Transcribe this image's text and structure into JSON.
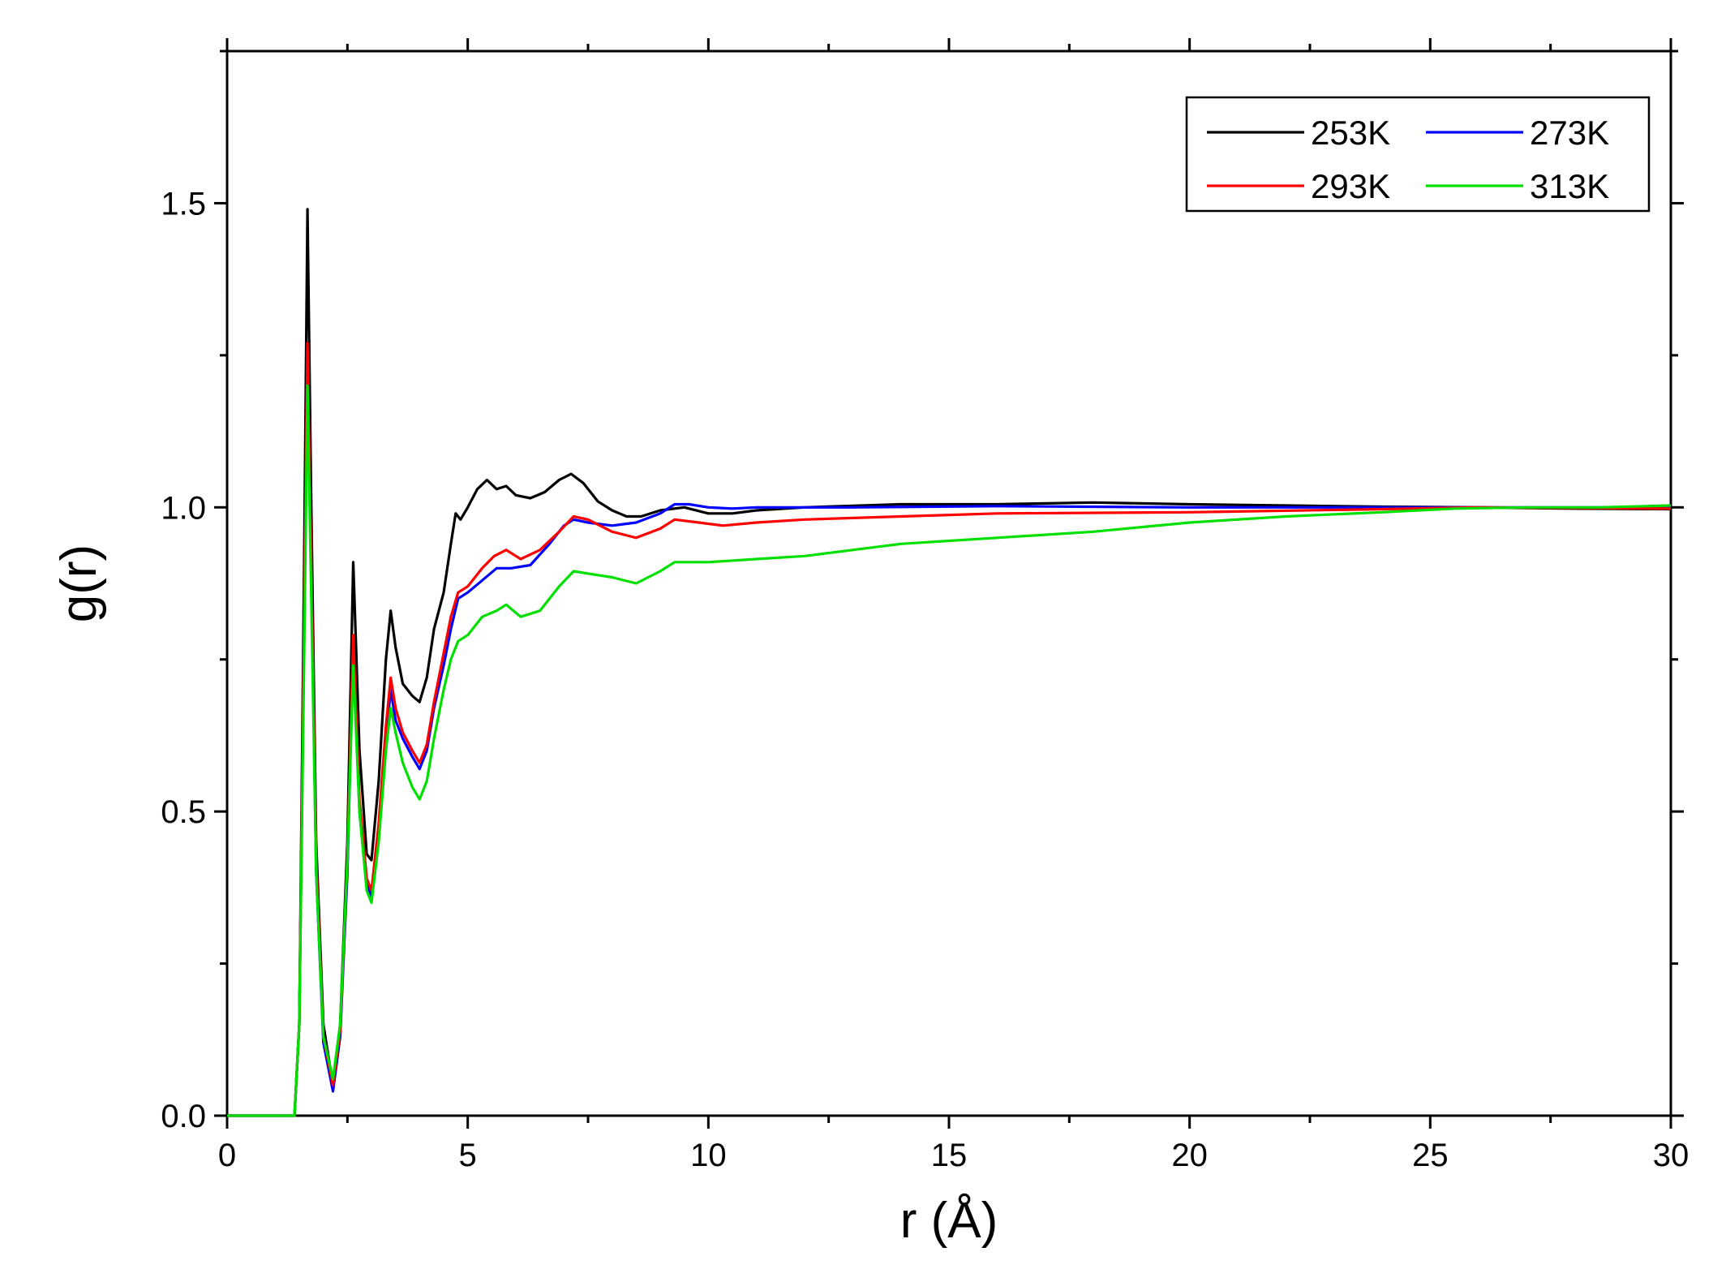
{
  "chart_data": {
    "type": "line",
    "title": "",
    "xlabel": "r (Å)",
    "ylabel": "g(r)",
    "xlim": [
      0,
      30
    ],
    "ylim": [
      0,
      1.75
    ],
    "x_ticks": [
      0,
      5,
      10,
      15,
      20,
      25,
      30
    ],
    "x_tick_labels": [
      "0",
      "5",
      "10",
      "15",
      "20",
      "25",
      "30"
    ],
    "y_ticks": [
      0.0,
      0.5,
      1.0,
      1.5
    ],
    "y_tick_labels": [
      "0.0",
      "0.5",
      "1.0",
      "1.5"
    ],
    "grid": false,
    "legend_position": "top-right",
    "series": [
      {
        "name": "253K",
        "color": "#000000",
        "points": [
          [
            0,
            0
          ],
          [
            1.4,
            0
          ],
          [
            1.5,
            0.15
          ],
          [
            1.6,
            0.9
          ],
          [
            1.67,
            1.49
          ],
          [
            1.75,
            1.0
          ],
          [
            1.85,
            0.45
          ],
          [
            2.0,
            0.15
          ],
          [
            2.2,
            0.05
          ],
          [
            2.35,
            0.15
          ],
          [
            2.5,
            0.45
          ],
          [
            2.62,
            0.91
          ],
          [
            2.75,
            0.6
          ],
          [
            2.9,
            0.43
          ],
          [
            3.0,
            0.42
          ],
          [
            3.15,
            0.55
          ],
          [
            3.3,
            0.75
          ],
          [
            3.4,
            0.83
          ],
          [
            3.5,
            0.77
          ],
          [
            3.65,
            0.71
          ],
          [
            3.85,
            0.69
          ],
          [
            4.0,
            0.68
          ],
          [
            4.15,
            0.72
          ],
          [
            4.3,
            0.8
          ],
          [
            4.5,
            0.86
          ],
          [
            4.65,
            0.94
          ],
          [
            4.75,
            0.99
          ],
          [
            4.85,
            0.98
          ],
          [
            5.0,
            1.0
          ],
          [
            5.2,
            1.03
          ],
          [
            5.4,
            1.045
          ],
          [
            5.6,
            1.03
          ],
          [
            5.8,
            1.035
          ],
          [
            6.0,
            1.02
          ],
          [
            6.3,
            1.015
          ],
          [
            6.6,
            1.025
          ],
          [
            6.9,
            1.045
          ],
          [
            7.15,
            1.055
          ],
          [
            7.4,
            1.04
          ],
          [
            7.7,
            1.01
          ],
          [
            8.0,
            0.995
          ],
          [
            8.3,
            0.985
          ],
          [
            8.6,
            0.985
          ],
          [
            9.0,
            0.995
          ],
          [
            9.5,
            1.0
          ],
          [
            10.0,
            0.99
          ],
          [
            10.5,
            0.99
          ],
          [
            11.0,
            0.995
          ],
          [
            12.0,
            1.0
          ],
          [
            14.0,
            1.005
          ],
          [
            16.0,
            1.005
          ],
          [
            18.0,
            1.008
          ],
          [
            20.0,
            1.005
          ],
          [
            22.0,
            1.003
          ],
          [
            24.0,
            1.001
          ],
          [
            26.0,
            1.0
          ],
          [
            28.0,
            0.998
          ],
          [
            30.0,
            0.997
          ]
        ]
      },
      {
        "name": "273K",
        "color": "#0000ff",
        "points": [
          [
            0,
            0
          ],
          [
            1.4,
            0
          ],
          [
            1.5,
            0.15
          ],
          [
            1.6,
            0.8
          ],
          [
            1.67,
            1.26
          ],
          [
            1.75,
            0.9
          ],
          [
            1.85,
            0.4
          ],
          [
            2.0,
            0.12
          ],
          [
            2.2,
            0.04
          ],
          [
            2.35,
            0.13
          ],
          [
            2.5,
            0.4
          ],
          [
            2.62,
            0.77
          ],
          [
            2.75,
            0.5
          ],
          [
            2.9,
            0.38
          ],
          [
            3.0,
            0.36
          ],
          [
            3.15,
            0.47
          ],
          [
            3.3,
            0.62
          ],
          [
            3.4,
            0.7
          ],
          [
            3.5,
            0.65
          ],
          [
            3.65,
            0.62
          ],
          [
            3.85,
            0.59
          ],
          [
            4.0,
            0.57
          ],
          [
            4.15,
            0.6
          ],
          [
            4.3,
            0.67
          ],
          [
            4.5,
            0.74
          ],
          [
            4.65,
            0.8
          ],
          [
            4.8,
            0.85
          ],
          [
            5.0,
            0.86
          ],
          [
            5.3,
            0.88
          ],
          [
            5.6,
            0.9
          ],
          [
            5.9,
            0.9
          ],
          [
            6.3,
            0.905
          ],
          [
            6.7,
            0.94
          ],
          [
            7.0,
            0.97
          ],
          [
            7.2,
            0.98
          ],
          [
            7.5,
            0.975
          ],
          [
            8.0,
            0.97
          ],
          [
            8.5,
            0.975
          ],
          [
            9.0,
            0.99
          ],
          [
            9.3,
            1.005
          ],
          [
            9.6,
            1.005
          ],
          [
            10.0,
            1.0
          ],
          [
            10.5,
            0.998
          ],
          [
            11.0,
            1.0
          ],
          [
            13.0,
            1.0
          ],
          [
            16.0,
            1.002
          ],
          [
            20.0,
            1.0
          ],
          [
            25.0,
            1.0
          ],
          [
            30.0,
            1.0
          ]
        ]
      },
      {
        "name": "293K",
        "color": "#ff0000",
        "points": [
          [
            0,
            0
          ],
          [
            1.4,
            0
          ],
          [
            1.5,
            0.15
          ],
          [
            1.6,
            0.8
          ],
          [
            1.67,
            1.27
          ],
          [
            1.75,
            0.9
          ],
          [
            1.85,
            0.42
          ],
          [
            2.0,
            0.13
          ],
          [
            2.2,
            0.05
          ],
          [
            2.35,
            0.14
          ],
          [
            2.5,
            0.42
          ],
          [
            2.62,
            0.79
          ],
          [
            2.75,
            0.52
          ],
          [
            2.9,
            0.39
          ],
          [
            3.0,
            0.37
          ],
          [
            3.15,
            0.48
          ],
          [
            3.3,
            0.64
          ],
          [
            3.4,
            0.72
          ],
          [
            3.5,
            0.67
          ],
          [
            3.65,
            0.63
          ],
          [
            3.85,
            0.6
          ],
          [
            4.0,
            0.58
          ],
          [
            4.15,
            0.61
          ],
          [
            4.3,
            0.68
          ],
          [
            4.5,
            0.76
          ],
          [
            4.65,
            0.82
          ],
          [
            4.8,
            0.86
          ],
          [
            5.0,
            0.87
          ],
          [
            5.3,
            0.9
          ],
          [
            5.55,
            0.92
          ],
          [
            5.8,
            0.93
          ],
          [
            6.1,
            0.915
          ],
          [
            6.5,
            0.93
          ],
          [
            6.9,
            0.96
          ],
          [
            7.2,
            0.985
          ],
          [
            7.5,
            0.98
          ],
          [
            8.0,
            0.96
          ],
          [
            8.5,
            0.95
          ],
          [
            9.0,
            0.965
          ],
          [
            9.3,
            0.98
          ],
          [
            9.8,
            0.975
          ],
          [
            10.3,
            0.97
          ],
          [
            11.0,
            0.975
          ],
          [
            12.0,
            0.98
          ],
          [
            14.0,
            0.985
          ],
          [
            16.0,
            0.99
          ],
          [
            20.0,
            0.992
          ],
          [
            24.0,
            0.997
          ],
          [
            26.0,
            1.0
          ],
          [
            28.0,
            0.999
          ],
          [
            30.0,
            0.998
          ]
        ]
      },
      {
        "name": "313K",
        "color": "#00e000",
        "points": [
          [
            0,
            0
          ],
          [
            1.4,
            0
          ],
          [
            1.5,
            0.15
          ],
          [
            1.6,
            0.75
          ],
          [
            1.67,
            1.2
          ],
          [
            1.75,
            0.85
          ],
          [
            1.85,
            0.4
          ],
          [
            2.0,
            0.13
          ],
          [
            2.2,
            0.06
          ],
          [
            2.35,
            0.15
          ],
          [
            2.5,
            0.42
          ],
          [
            2.62,
            0.74
          ],
          [
            2.75,
            0.5
          ],
          [
            2.9,
            0.37
          ],
          [
            3.0,
            0.35
          ],
          [
            3.15,
            0.45
          ],
          [
            3.3,
            0.6
          ],
          [
            3.4,
            0.67
          ],
          [
            3.5,
            0.63
          ],
          [
            3.65,
            0.58
          ],
          [
            3.85,
            0.54
          ],
          [
            4.0,
            0.52
          ],
          [
            4.15,
            0.55
          ],
          [
            4.3,
            0.62
          ],
          [
            4.5,
            0.7
          ],
          [
            4.65,
            0.75
          ],
          [
            4.8,
            0.78
          ],
          [
            5.0,
            0.79
          ],
          [
            5.3,
            0.82
          ],
          [
            5.6,
            0.83
          ],
          [
            5.8,
            0.84
          ],
          [
            6.1,
            0.82
          ],
          [
            6.5,
            0.83
          ],
          [
            6.9,
            0.87
          ],
          [
            7.2,
            0.895
          ],
          [
            7.6,
            0.89
          ],
          [
            8.0,
            0.885
          ],
          [
            8.5,
            0.875
          ],
          [
            9.0,
            0.895
          ],
          [
            9.3,
            0.91
          ],
          [
            10.0,
            0.91
          ],
          [
            11.0,
            0.915
          ],
          [
            12.0,
            0.92
          ],
          [
            13.0,
            0.93
          ],
          [
            14.0,
            0.94
          ],
          [
            16.0,
            0.95
          ],
          [
            18.0,
            0.96
          ],
          [
            20.0,
            0.975
          ],
          [
            22.0,
            0.985
          ],
          [
            24.0,
            0.992
          ],
          [
            25.5,
            0.998
          ],
          [
            27.0,
            1.0
          ],
          [
            28.5,
            1.0
          ],
          [
            30.0,
            1.003
          ]
        ]
      }
    ]
  }
}
